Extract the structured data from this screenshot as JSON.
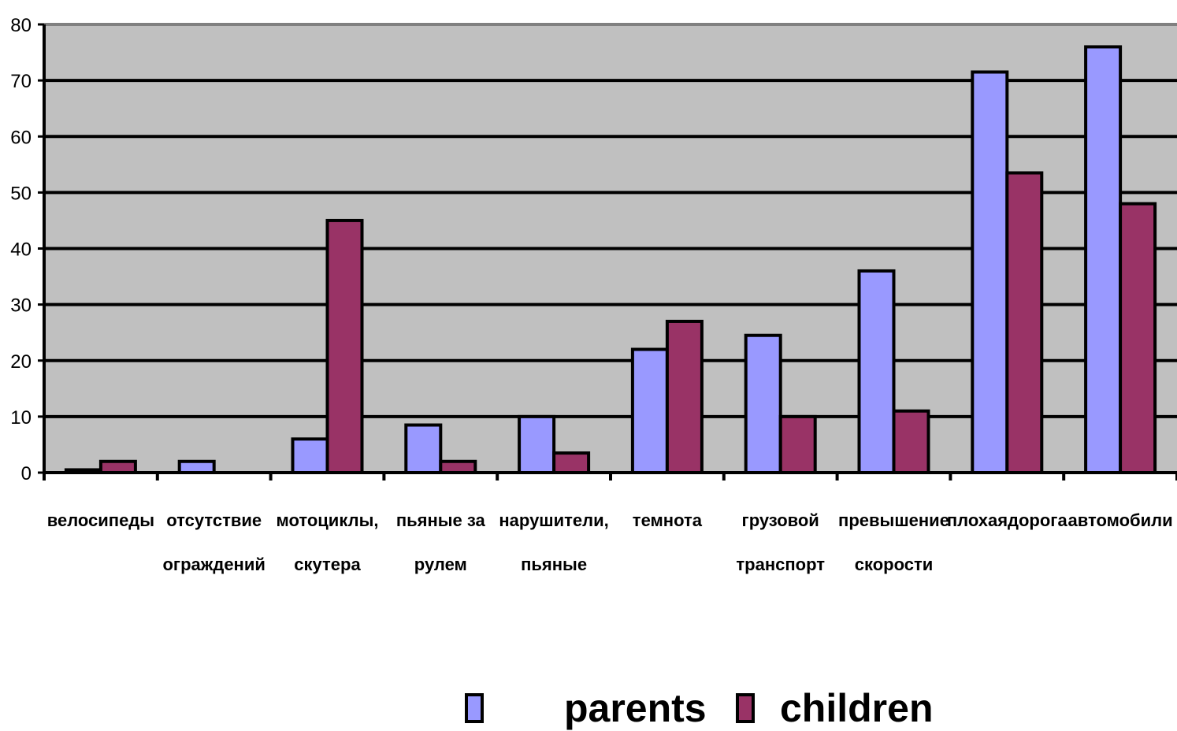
{
  "chart_data": {
    "type": "bar",
    "title": "",
    "xlabel": "",
    "ylabel": "",
    "ylim": [
      0,
      80
    ],
    "yticks": [
      0,
      10,
      20,
      30,
      40,
      50,
      60,
      70,
      80
    ],
    "grid": true,
    "legend_position": "bottom",
    "categories": [
      [
        "велосипеды"
      ],
      [
        "отсутствие",
        "ограждений"
      ],
      [
        "мотоциклы,",
        "скутера"
      ],
      [
        "пьяные за",
        "рулем"
      ],
      [
        "нарушители,",
        "пьяные"
      ],
      [
        "темнота"
      ],
      [
        "грузовой",
        "транспорт"
      ],
      [
        "превышение",
        "скорости"
      ],
      [
        "плохаядорога"
      ],
      [
        "автомобили"
      ]
    ],
    "series": [
      {
        "name": "parents",
        "color": "#9999ff",
        "values": [
          0.5,
          2,
          6,
          8.5,
          10,
          22,
          24.5,
          36,
          71.5,
          76
        ]
      },
      {
        "name": "children",
        "color": "#993366",
        "values": [
          2,
          0,
          45,
          2,
          3.5,
          27,
          10,
          11,
          53.5,
          48
        ]
      }
    ],
    "plot_background": "#c0c0c0"
  }
}
